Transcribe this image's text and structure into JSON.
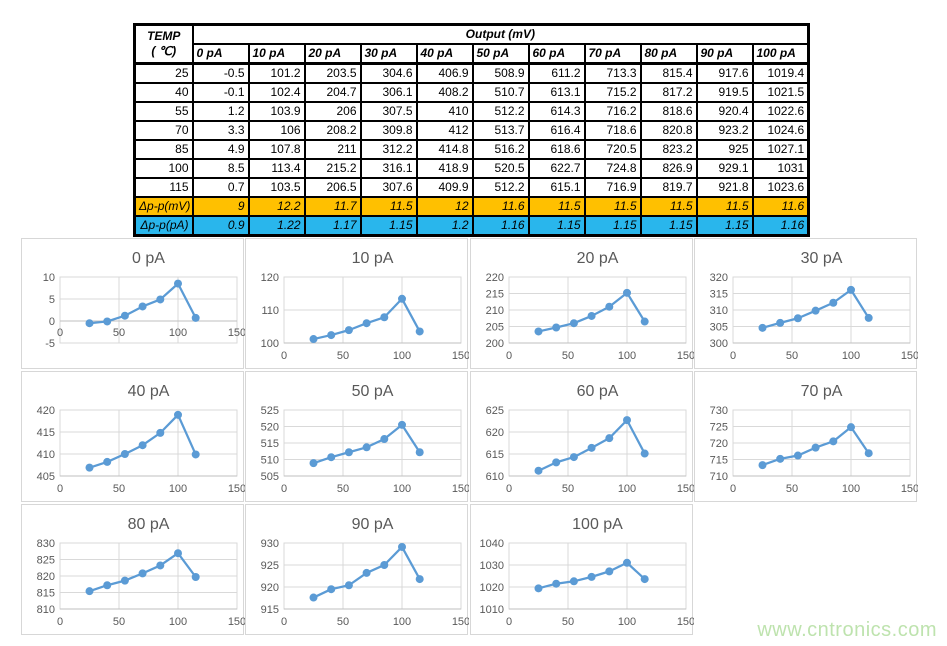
{
  "watermark": "www.cntronics.com",
  "colors": {
    "line": "#5B9BD5",
    "marker": "#5B9BD5",
    "gridline": "#D9D9D9",
    "axis_line": "#BFBFBF",
    "tick_text": "#595959",
    "title_text": "#595959",
    "delta_mv_bg": "#FFC000",
    "delta_pa_bg": "#29B6EC",
    "table_border": "#000000",
    "watermark_green": "#BEE3AE"
  },
  "table": {
    "temp_header_line1": "TEMP",
    "temp_header_line2": "( ℃)",
    "output_header": "Output (mV)",
    "current_headers": [
      "0 pA",
      "10 pA",
      "20 pA",
      "30 pA",
      "40 pA",
      "50 pA",
      "60 pA",
      "70 pA",
      "80 pA",
      "90 pA",
      "100 pA"
    ],
    "rows": [
      {
        "temp": "25",
        "values": [
          "-0.5",
          "101.2",
          "203.5",
          "304.6",
          "406.9",
          "508.9",
          "611.2",
          "713.3",
          "815.4",
          "917.6",
          "1019.4"
        ]
      },
      {
        "temp": "40",
        "values": [
          "-0.1",
          "102.4",
          "204.7",
          "306.1",
          "408.2",
          "510.7",
          "613.1",
          "715.2",
          "817.2",
          "919.5",
          "1021.5"
        ]
      },
      {
        "temp": "55",
        "values": [
          "1.2",
          "103.9",
          "206",
          "307.5",
          "410",
          "512.2",
          "614.3",
          "716.2",
          "818.6",
          "920.4",
          "1022.6"
        ]
      },
      {
        "temp": "70",
        "values": [
          "3.3",
          "106",
          "208.2",
          "309.8",
          "412",
          "513.7",
          "616.4",
          "718.6",
          "820.8",
          "923.2",
          "1024.6"
        ]
      },
      {
        "temp": "85",
        "values": [
          "4.9",
          "107.8",
          "211",
          "312.2",
          "414.8",
          "516.2",
          "618.6",
          "720.5",
          "823.2",
          "925",
          "1027.1"
        ]
      },
      {
        "temp": "100",
        "values": [
          "8.5",
          "113.4",
          "215.2",
          "316.1",
          "418.9",
          "520.5",
          "622.7",
          "724.8",
          "826.9",
          "929.1",
          "1031"
        ]
      },
      {
        "temp": "115",
        "values": [
          "0.7",
          "103.5",
          "206.5",
          "307.6",
          "409.9",
          "512.2",
          "615.1",
          "716.9",
          "819.7",
          "921.8",
          "1023.6"
        ]
      }
    ],
    "delta_mv": {
      "label": "Δp-p(mV)",
      "values": [
        "9",
        "12.2",
        "11.7",
        "11.5",
        "12",
        "11.6",
        "11.5",
        "11.5",
        "11.5",
        "11.5",
        "11.6"
      ]
    },
    "delta_pa": {
      "label": "Δp-p(pA)",
      "values": [
        "0.9",
        "1.22",
        "1.17",
        "1.15",
        "1.2",
        "1.16",
        "1.15",
        "1.15",
        "1.15",
        "1.15",
        "1.16"
      ]
    }
  },
  "chart_data": [
    {
      "type": "line",
      "title": "0 pA",
      "xlabel": "",
      "ylabel": "",
      "x": [
        25,
        40,
        55,
        70,
        85,
        100,
        115
      ],
      "values": [
        -0.5,
        -0.1,
        1.2,
        3.3,
        4.9,
        8.5,
        0.7
      ],
      "xlim": [
        0,
        150
      ],
      "ylim": [
        -5,
        10
      ],
      "xticks": [
        0,
        50,
        100,
        150
      ],
      "yticks": [
        -5,
        0,
        5,
        10
      ],
      "grid": true,
      "legend": "none"
    },
    {
      "type": "line",
      "title": "10 pA",
      "xlabel": "",
      "ylabel": "",
      "x": [
        25,
        40,
        55,
        70,
        85,
        100,
        115
      ],
      "values": [
        101.2,
        102.4,
        103.9,
        106,
        107.8,
        113.4,
        103.5
      ],
      "xlim": [
        0,
        150
      ],
      "ylim": [
        100,
        120
      ],
      "xticks": [
        0,
        50,
        100,
        150
      ],
      "yticks": [
        100,
        110,
        120
      ],
      "grid": true,
      "legend": "none"
    },
    {
      "type": "line",
      "title": "20 pA",
      "xlabel": "",
      "ylabel": "",
      "x": [
        25,
        40,
        55,
        70,
        85,
        100,
        115
      ],
      "values": [
        203.5,
        204.7,
        206,
        208.2,
        211,
        215.2,
        206.5
      ],
      "xlim": [
        0,
        150
      ],
      "ylim": [
        200,
        220
      ],
      "xticks": [
        0,
        50,
        100,
        150
      ],
      "yticks": [
        200,
        205,
        210,
        215,
        220
      ],
      "grid": true,
      "legend": "none"
    },
    {
      "type": "line",
      "title": "30 pA",
      "xlabel": "",
      "ylabel": "",
      "x": [
        25,
        40,
        55,
        70,
        85,
        100,
        115
      ],
      "values": [
        304.6,
        306.1,
        307.5,
        309.8,
        312.2,
        316.1,
        307.6
      ],
      "xlim": [
        0,
        150
      ],
      "ylim": [
        300,
        320
      ],
      "xticks": [
        0,
        50,
        100,
        150
      ],
      "yticks": [
        300,
        305,
        310,
        315,
        320
      ],
      "grid": true,
      "legend": "none"
    },
    {
      "type": "line",
      "title": "40 pA",
      "xlabel": "",
      "ylabel": "",
      "x": [
        25,
        40,
        55,
        70,
        85,
        100,
        115
      ],
      "values": [
        406.9,
        408.2,
        410,
        412,
        414.8,
        418.9,
        409.9
      ],
      "xlim": [
        0,
        150
      ],
      "ylim": [
        405,
        420
      ],
      "xticks": [
        0,
        50,
        100,
        150
      ],
      "yticks": [
        405,
        410,
        415,
        420
      ],
      "grid": true,
      "legend": "none"
    },
    {
      "type": "line",
      "title": "50 pA",
      "xlabel": "",
      "ylabel": "",
      "x": [
        25,
        40,
        55,
        70,
        85,
        100,
        115
      ],
      "values": [
        508.9,
        510.7,
        512.2,
        513.7,
        516.2,
        520.5,
        512.2
      ],
      "xlim": [
        0,
        150
      ],
      "ylim": [
        505,
        525
      ],
      "xticks": [
        0,
        50,
        100,
        150
      ],
      "yticks": [
        505,
        510,
        515,
        520,
        525
      ],
      "grid": true,
      "legend": "none"
    },
    {
      "type": "line",
      "title": "60 pA",
      "xlabel": "",
      "ylabel": "",
      "x": [
        25,
        40,
        55,
        70,
        85,
        100,
        115
      ],
      "values": [
        611.2,
        613.1,
        614.3,
        616.4,
        618.6,
        622.7,
        615.1
      ],
      "xlim": [
        0,
        150
      ],
      "ylim": [
        610,
        625
      ],
      "xticks": [
        0,
        50,
        100,
        150
      ],
      "yticks": [
        610,
        615,
        620,
        625
      ],
      "grid": true,
      "legend": "none"
    },
    {
      "type": "line",
      "title": "70 pA",
      "xlabel": "",
      "ylabel": "",
      "x": [
        25,
        40,
        55,
        70,
        85,
        100,
        115
      ],
      "values": [
        713.3,
        715.2,
        716.2,
        718.6,
        720.5,
        724.8,
        716.9
      ],
      "xlim": [
        0,
        150
      ],
      "ylim": [
        710,
        730
      ],
      "xticks": [
        0,
        50,
        100,
        150
      ],
      "yticks": [
        710,
        715,
        720,
        725,
        730
      ],
      "grid": true,
      "legend": "none"
    },
    {
      "type": "line",
      "title": "80 pA",
      "xlabel": "",
      "ylabel": "",
      "x": [
        25,
        40,
        55,
        70,
        85,
        100,
        115
      ],
      "values": [
        815.4,
        817.2,
        818.6,
        820.8,
        823.2,
        826.9,
        819.7
      ],
      "xlim": [
        0,
        150
      ],
      "ylim": [
        810,
        830
      ],
      "xticks": [
        0,
        50,
        100,
        150
      ],
      "yticks": [
        810,
        815,
        820,
        825,
        830
      ],
      "grid": true,
      "legend": "none"
    },
    {
      "type": "line",
      "title": "90 pA",
      "xlabel": "",
      "ylabel": "",
      "x": [
        25,
        40,
        55,
        70,
        85,
        100,
        115
      ],
      "values": [
        917.6,
        919.5,
        920.4,
        923.2,
        925,
        929.1,
        921.8
      ],
      "xlim": [
        0,
        150
      ],
      "ylim": [
        915,
        930
      ],
      "xticks": [
        0,
        50,
        100,
        150
      ],
      "yticks": [
        915,
        920,
        925,
        930
      ],
      "grid": true,
      "legend": "none"
    },
    {
      "type": "line",
      "title": "100 pA",
      "xlabel": "",
      "ylabel": "",
      "x": [
        25,
        40,
        55,
        70,
        85,
        100,
        115
      ],
      "values": [
        1019.4,
        1021.5,
        1022.6,
        1024.6,
        1027.1,
        1031,
        1023.6
      ],
      "xlim": [
        0,
        150
      ],
      "ylim": [
        1010,
        1040
      ],
      "xticks": [
        0,
        50,
        100,
        150
      ],
      "yticks": [
        1010,
        1020,
        1030,
        1040
      ],
      "grid": true,
      "legend": "none"
    }
  ]
}
